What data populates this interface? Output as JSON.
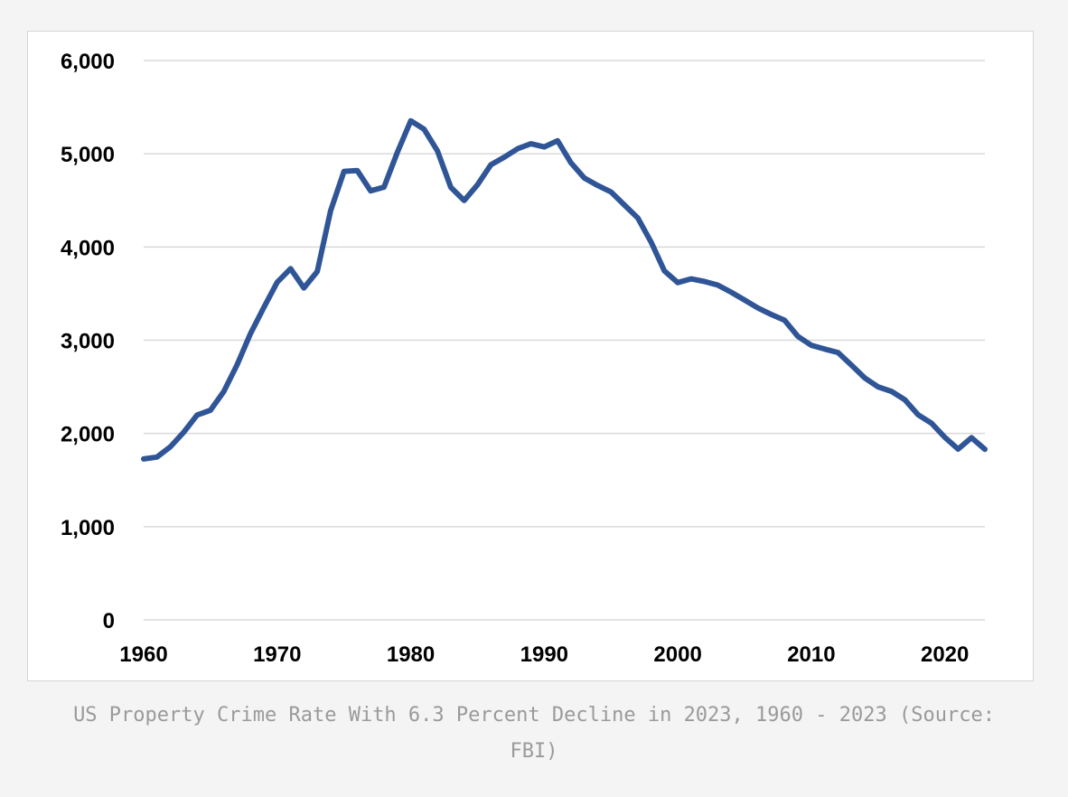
{
  "caption": "US Property Crime Rate With 6.3 Percent Decline in 2023, 1960 - 2023 (Source: FBI)",
  "colors": {
    "line": "#2f5597",
    "grid": "#d9d9d9",
    "page_background": "#f4f4f4"
  },
  "chart_data": {
    "type": "line",
    "title": "",
    "xlabel": "",
    "ylabel": "",
    "xlim": [
      1960,
      2023
    ],
    "ylim": [
      0,
      6000
    ],
    "grid": "horizontal",
    "legend": "none",
    "yticks": [
      0,
      1000,
      2000,
      3000,
      4000,
      5000,
      6000
    ],
    "ytick_labels": [
      "0",
      "1,000",
      "2,000",
      "3,000",
      "4,000",
      "5,000",
      "6,000"
    ],
    "xticks": [
      1960,
      1970,
      1980,
      1990,
      2000,
      2010,
      2020
    ],
    "xtick_labels": [
      "1960",
      "1970",
      "1980",
      "1990",
      "2000",
      "2010",
      "2020"
    ],
    "series": [
      {
        "x": [
          1960,
          1961,
          1962,
          1963,
          1964,
          1965,
          1966,
          1967,
          1968,
          1969,
          1970,
          1971,
          1972,
          1973,
          1974,
          1975,
          1976,
          1977,
          1978,
          1979,
          1980,
          1981,
          1982,
          1983,
          1984,
          1985,
          1986,
          1987,
          1988,
          1989,
          1990,
          1991,
          1992,
          1993,
          1994,
          1995,
          1996,
          1997,
          1998,
          1999,
          2000,
          2001,
          2002,
          2003,
          2004,
          2005,
          2006,
          2007,
          2008,
          2009,
          2010,
          2011,
          2012,
          2013,
          2014,
          2015,
          2016,
          2017,
          2018,
          2019,
          2020,
          2021,
          2022,
          2023
        ],
        "values": [
          1726,
          1747,
          1857,
          2012,
          2197,
          2249,
          2450,
          2736,
          3071,
          3351,
          3622,
          3768,
          3560,
          3737,
          4389,
          4811,
          4820,
          4602,
          4642,
          5016,
          5353,
          5264,
          5032,
          4641,
          4499,
          4666,
          4881,
          4963,
          5054,
          5107,
          5073,
          5140,
          4903,
          4740,
          4660,
          4591,
          4451,
          4312,
          4053,
          3744,
          3618,
          3658,
          3630,
          3591,
          3515,
          3431,
          3346,
          3276,
          3214,
          3041,
          2946,
          2905,
          2868,
          2734,
          2596,
          2500,
          2451,
          2362,
          2200,
          2110,
          1958,
          1832,
          1954,
          1830
        ]
      }
    ]
  }
}
